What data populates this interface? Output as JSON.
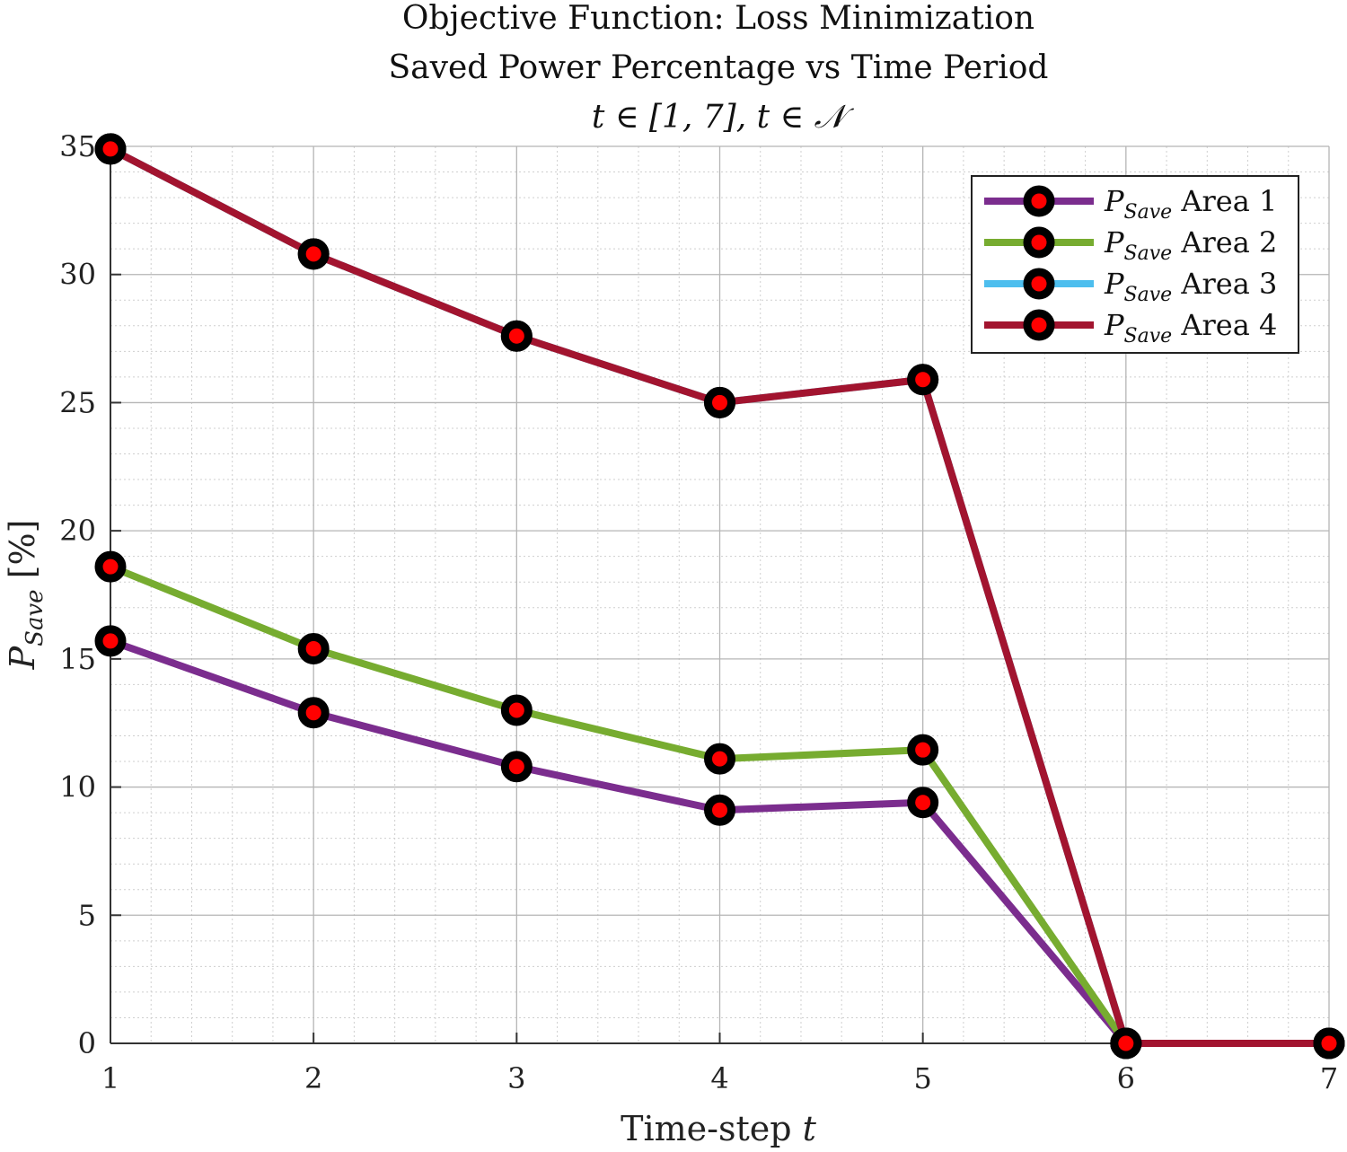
{
  "chart_data": {
    "type": "line",
    "title_lines": [
      "Objective Function: Loss Minimization",
      "Saved Power Percentage vs Time Period",
      "t ∈ [1, 7], t ∈ 𝒩"
    ],
    "xlabel": "Time-step t",
    "ylabel": "P_Save [%]",
    "x": [
      1,
      2,
      3,
      4,
      5,
      6,
      7
    ],
    "xlim": [
      1,
      7
    ],
    "ylim": [
      0,
      35
    ],
    "xticks": [
      1,
      2,
      3,
      4,
      5,
      6,
      7
    ],
    "yticks": [
      0,
      5,
      10,
      15,
      20,
      25,
      30,
      35
    ],
    "grid": true,
    "minor_grid": true,
    "legend_position": "top-right",
    "marker": {
      "face": "#ff0000",
      "edge": "#000000"
    },
    "series": [
      {
        "name": "P_Save Area 1",
        "color": "#7b2d8e",
        "values": [
          15.7,
          12.9,
          10.8,
          9.1,
          9.4,
          0,
          0
        ]
      },
      {
        "name": "P_Save Area 2",
        "color": "#77ac30",
        "values": [
          18.6,
          15.4,
          13.0,
          11.1,
          11.45,
          0,
          0
        ]
      },
      {
        "name": "P_Save Area 3",
        "color": "#4dbeee",
        "values": [
          34.9,
          30.8,
          27.6,
          25.0,
          25.9,
          0,
          0
        ]
      },
      {
        "name": "P_Save Area 4",
        "color": "#a2142f",
        "values": [
          34.9,
          30.8,
          27.6,
          25.0,
          25.9,
          0,
          0
        ]
      }
    ],
    "legend_entries": [
      {
        "symbol": "P",
        "subscript": "Save",
        "label": "Area 1"
      },
      {
        "symbol": "P",
        "subscript": "Save",
        "label": "Area 2"
      },
      {
        "symbol": "P",
        "subscript": "Save",
        "label": "Area 3"
      },
      {
        "symbol": "P",
        "subscript": "Save",
        "label": "Area 4"
      }
    ],
    "axis_label_parts": {
      "x_text": "Time-step",
      "x_var": "t",
      "y_symbol": "P",
      "y_subscript": "Save",
      "y_unit": "[%]"
    }
  }
}
